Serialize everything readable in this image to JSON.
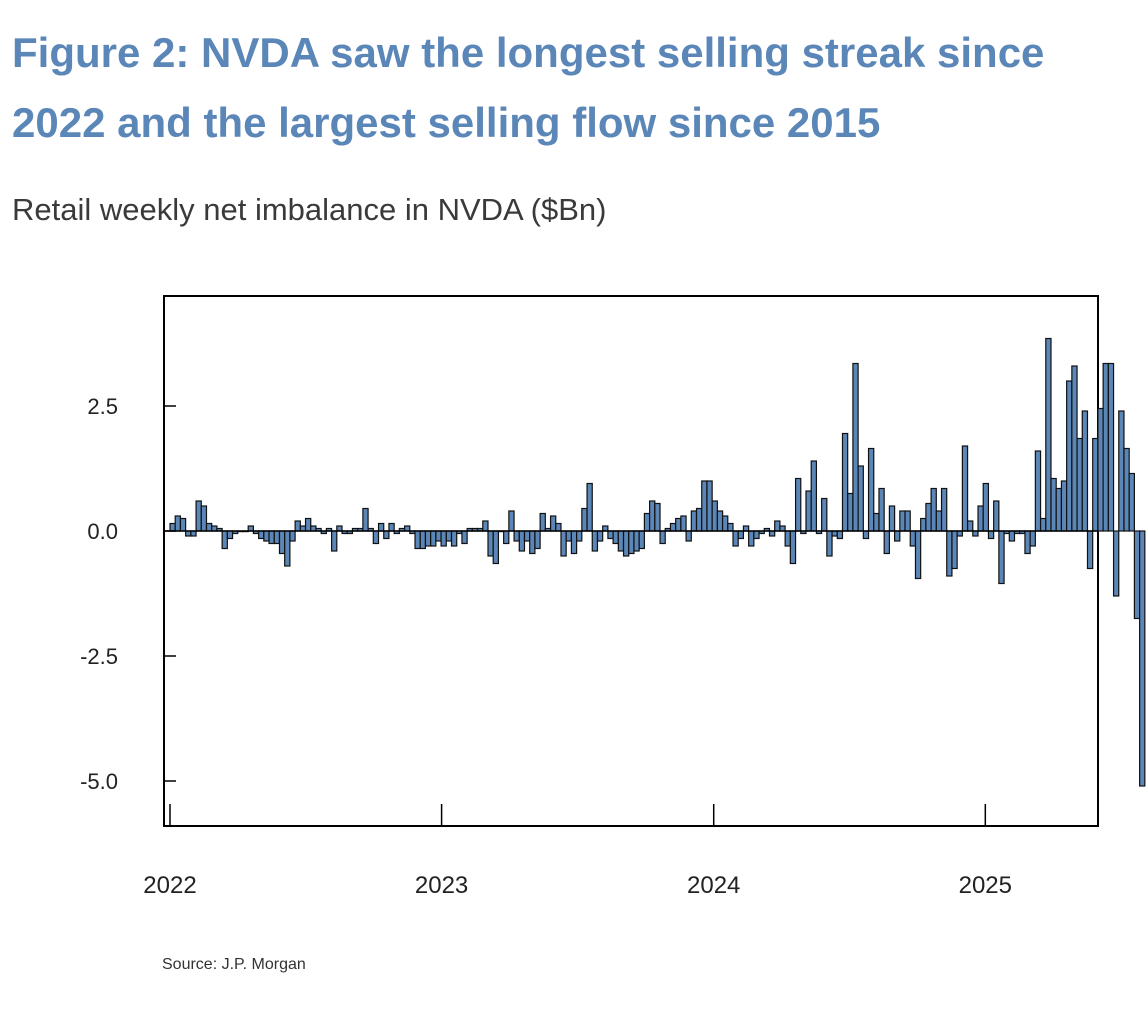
{
  "figure": {
    "title": "Figure 2: NVDA saw the longest selling streak since 2022 and the largest selling flow since 2015",
    "subtitle": "Retail weekly net imbalance in NVDA ($Bn)",
    "source": "Source: J.P. Morgan"
  },
  "colors": {
    "title": "#5b86b8",
    "bar_fill": "#5b86b8",
    "bar_stroke": "#111111"
  },
  "chart_data": {
    "type": "bar",
    "title": "Retail weekly net imbalance in NVDA ($Bn)",
    "xlabel": "",
    "ylabel": "",
    "ylim": [
      -5.9,
      4.7
    ],
    "grid": false,
    "legend": "none",
    "yticks": [
      2.5,
      0.0,
      -2.5,
      -5.0
    ],
    "ytick_labels": [
      "2.5",
      "0.0",
      "-2.5",
      "-5.0"
    ],
    "xticks": [
      0,
      52.1,
      104.3,
      156.4
    ],
    "xtick_labels": [
      "2022",
      "2023",
      "2024",
      "2025"
    ],
    "x_unit": "weeks since start of 2022",
    "series": [
      {
        "name": "Retail weekly net imbalance",
        "values": [
          0.15,
          0.3,
          0.25,
          -0.1,
          -0.1,
          0.6,
          0.5,
          0.15,
          0.1,
          0.05,
          -0.35,
          -0.15,
          -0.05,
          0.0,
          0.0,
          0.1,
          -0.05,
          -0.15,
          -0.2,
          -0.25,
          -0.25,
          -0.45,
          -0.7,
          -0.2,
          0.2,
          0.1,
          0.25,
          0.1,
          0.05,
          -0.05,
          0.05,
          -0.4,
          0.1,
          -0.05,
          -0.05,
          0.05,
          0.05,
          0.45,
          0.05,
          -0.25,
          0.15,
          -0.15,
          0.15,
          -0.05,
          0.05,
          0.1,
          -0.05,
          -0.35,
          -0.35,
          -0.3,
          -0.3,
          -0.2,
          -0.3,
          -0.2,
          -0.3,
          -0.05,
          -0.25,
          0.05,
          0.05,
          0.05,
          0.2,
          -0.5,
          -0.65,
          0.0,
          -0.25,
          0.4,
          -0.2,
          -0.4,
          -0.2,
          -0.45,
          -0.35,
          0.35,
          0.05,
          0.3,
          0.15,
          -0.5,
          -0.2,
          -0.45,
          -0.2,
          0.45,
          0.95,
          -0.4,
          -0.2,
          0.1,
          -0.15,
          -0.25,
          -0.4,
          -0.5,
          -0.45,
          -0.4,
          -0.35,
          0.35,
          0.6,
          0.55,
          -0.25,
          0.05,
          0.15,
          0.25,
          0.3,
          -0.2,
          0.4,
          0.45,
          1.0,
          1.0,
          0.6,
          0.4,
          0.3,
          0.15,
          -0.3,
          -0.15,
          0.1,
          -0.3,
          -0.15,
          -0.05,
          0.05,
          -0.1,
          0.2,
          0.1,
          -0.3,
          -0.65,
          1.05,
          -0.05,
          0.8,
          1.4,
          -0.05,
          0.65,
          -0.5,
          -0.1,
          -0.15,
          1.95,
          0.75,
          3.35,
          1.3,
          -0.15,
          1.65,
          0.35,
          0.85,
          -0.45,
          0.5,
          -0.2,
          0.4,
          0.4,
          -0.3,
          -0.95,
          0.25,
          0.55,
          0.85,
          0.4,
          0.85,
          -0.9,
          -0.75,
          -0.1,
          1.7,
          0.2,
          -0.1,
          0.5,
          0.95,
          -0.15,
          0.6,
          -1.05,
          -0.05,
          -0.2,
          -0.05,
          -0.05,
          -0.45,
          -0.3,
          1.6,
          0.25,
          3.85,
          1.05,
          0.85,
          1.0,
          3.0,
          3.3,
          1.85,
          2.4,
          -0.75,
          1.85,
          2.45,
          3.35,
          3.35,
          -1.3,
          2.4,
          1.65,
          1.15,
          -1.75,
          -5.1
        ]
      }
    ]
  }
}
